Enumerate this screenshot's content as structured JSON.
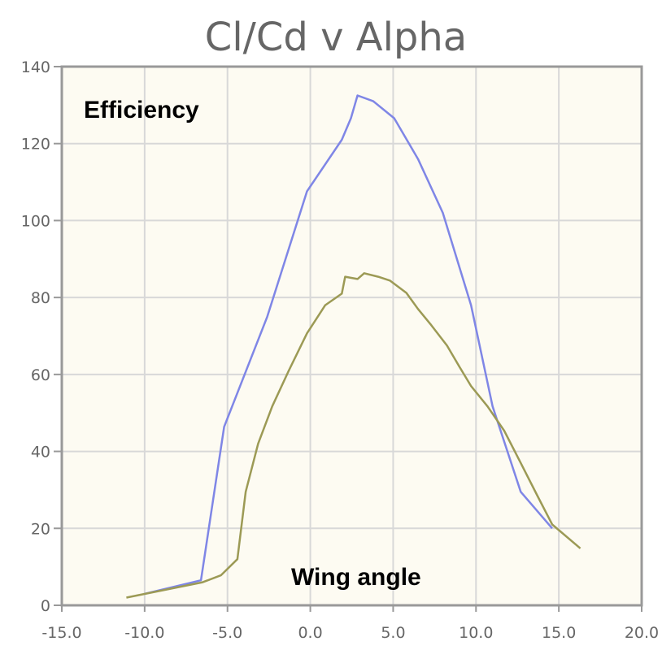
{
  "chart_data": {
    "type": "line",
    "title": "Cl/Cd v Alpha",
    "xlabel": "",
    "ylabel": "",
    "xlim": [
      -15,
      20
    ],
    "ylim": [
      0,
      140
    ],
    "xticks": [
      "-15.0",
      "-10.0",
      "-5.0",
      "0.0",
      "5.0",
      "10.0",
      "15.0",
      "20.0"
    ],
    "yticks": [
      "0",
      "20",
      "40",
      "60",
      "80",
      "100",
      "120",
      "140"
    ],
    "grid": true,
    "annotations": [
      "Efficiency",
      "Wing angle"
    ],
    "series": [
      {
        "color": "#7f86e6",
        "points": [
          [
            -10,
            3
          ],
          [
            -6.6,
            6.5
          ],
          [
            -5.2,
            46.4
          ],
          [
            -2.6,
            75
          ],
          [
            -0.2,
            107.6
          ],
          [
            1.9,
            121
          ],
          [
            2.45,
            126.6
          ],
          [
            2.85,
            132.5
          ],
          [
            3.8,
            131
          ],
          [
            5.06,
            126.6
          ],
          [
            6.5,
            116
          ],
          [
            8.0,
            102
          ],
          [
            9.7,
            78
          ],
          [
            11.0,
            51.7
          ],
          [
            12.7,
            29.5
          ],
          [
            14.6,
            20
          ]
        ]
      },
      {
        "color": "#9c9a55",
        "points": [
          [
            -11.1,
            2
          ],
          [
            -6.5,
            6
          ],
          [
            -5.4,
            7.8
          ],
          [
            -4.4,
            12
          ],
          [
            -3.9,
            29.5
          ],
          [
            -3.15,
            42
          ],
          [
            -2.3,
            51.7
          ],
          [
            -1.3,
            61
          ],
          [
            -0.2,
            70.7
          ],
          [
            0.9,
            78
          ],
          [
            1.9,
            81
          ],
          [
            2.1,
            85.4
          ],
          [
            2.85,
            84.8
          ],
          [
            3.25,
            86.3
          ],
          [
            4.1,
            85.4
          ],
          [
            4.8,
            84.4
          ],
          [
            5.8,
            81.2
          ],
          [
            6.5,
            77
          ],
          [
            7.3,
            72.8
          ],
          [
            8.25,
            67.5
          ],
          [
            9.0,
            62
          ],
          [
            9.7,
            57
          ],
          [
            10.7,
            51.7
          ],
          [
            11.7,
            45.4
          ],
          [
            12.7,
            37
          ],
          [
            13.7,
            28.5
          ],
          [
            14.6,
            21
          ],
          [
            16.3,
            14.8
          ]
        ]
      }
    ]
  }
}
